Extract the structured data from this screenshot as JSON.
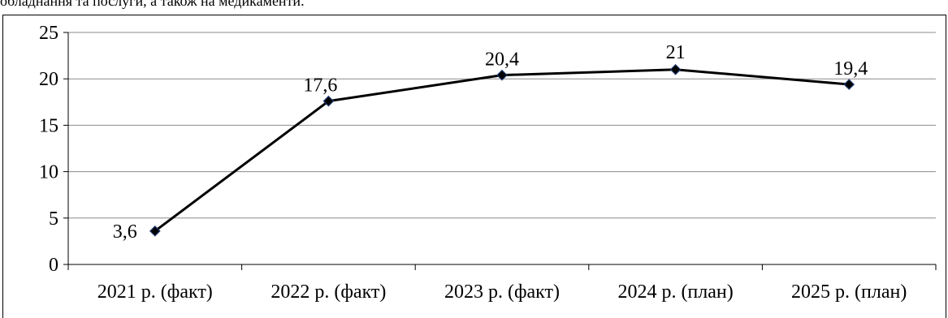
{
  "caption": "обладнання та послуги, а також на медикаменти.",
  "chart_data": {
    "type": "line",
    "title": "",
    "xlabel": "",
    "ylabel": "",
    "categories": [
      "2021 р. (факт)",
      "2022 р. (факт)",
      "2023 р. (факт)",
      "2024 р. (план)",
      "2025 р. (план)"
    ],
    "values": [
      3.6,
      17.6,
      20.4,
      21,
      19.4
    ],
    "data_labels": [
      "3,6",
      "17,6",
      "20,4",
      "21",
      "19,4"
    ],
    "ylim": [
      0,
      25
    ],
    "yticks": [
      0,
      5,
      10,
      15,
      20,
      25
    ],
    "grid": "horizontal",
    "legend": "none",
    "line_color": "#000000",
    "marker": "diamond",
    "marker_color": "#000000",
    "marker_edge_color": "#1f3a6e"
  }
}
